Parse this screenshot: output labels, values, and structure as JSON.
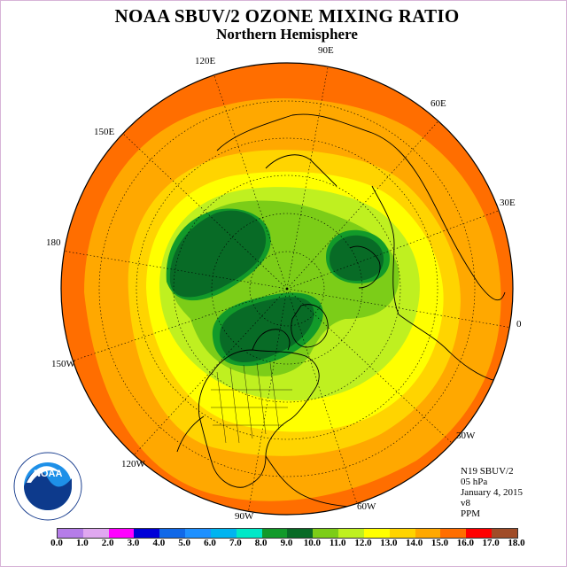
{
  "title": "NOAA SBUV/2 OZONE MIXING RATIO",
  "subtitle": "Northern Hemisphere",
  "longitude_labels": [
    "90E",
    "60E",
    "30E",
    "0",
    "30W",
    "60W",
    "90W",
    "120W",
    "150W",
    "180",
    "150E",
    "120E"
  ],
  "info": {
    "satellite": "N19 SBUV/2",
    "level": "05 hPa",
    "date": "January 4, 2015",
    "version": "v8",
    "units": "PPM"
  },
  "logo": {
    "text": "NOAA",
    "ring_text": "NATIONAL OCEANIC AND ATMOSPHERIC ADMINISTRATION · U.S. DEPARTMENT OF COMMERCE"
  },
  "colorbar": {
    "ticks": [
      "0.0",
      "1.0",
      "2.0",
      "3.0",
      "4.0",
      "5.0",
      "6.0",
      "7.0",
      "8.0",
      "9.0",
      "10.0",
      "11.0",
      "12.0",
      "13.0",
      "14.0",
      "15.0",
      "16.0",
      "17.0",
      "18.0"
    ],
    "colors": [
      "#b57de8",
      "#e0a8f0",
      "#ff00ff",
      "#0000d8",
      "#1068e8",
      "#1e90ff",
      "#00b4f0",
      "#00e8c8",
      "#129a2a",
      "#086b26",
      "#7ccd18",
      "#bff020",
      "#ffff00",
      "#ffd400",
      "#ffa800",
      "#ff6e00",
      "#ff0000",
      "#a04c28"
    ]
  },
  "map_colors": {
    "outer": "#ff6e00",
    "orange": "#ffa800",
    "light_orange": "#ffd400",
    "yellow": "#ffff00",
    "light_green": "#bff020",
    "green": "#7ccd18",
    "mid_green": "#129a2a",
    "dark_green": "#086b26"
  }
}
